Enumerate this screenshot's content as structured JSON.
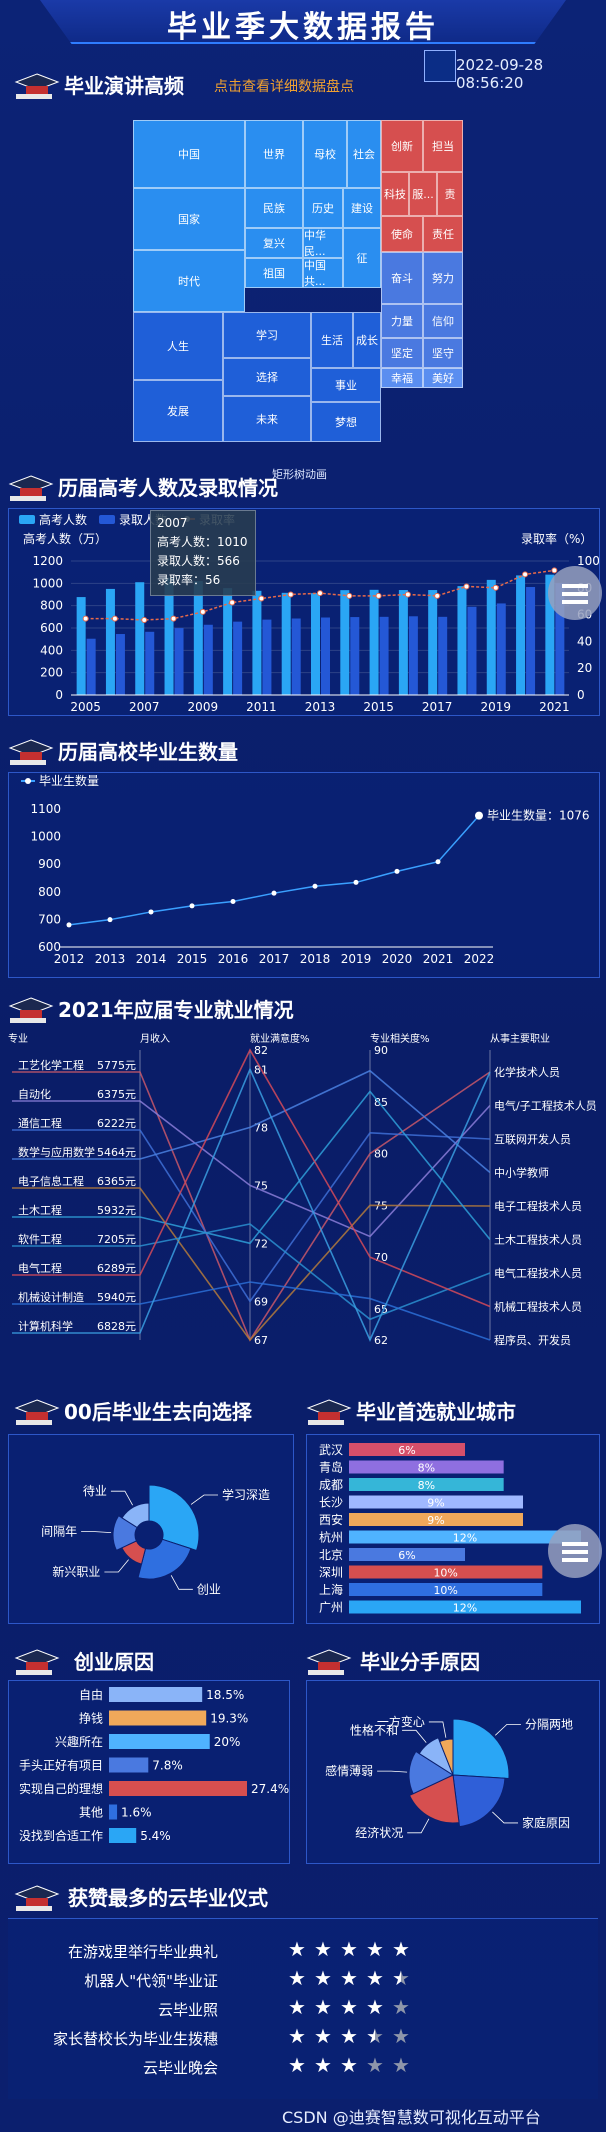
{
  "header": {
    "title": "毕业季大数据报告",
    "timestamp": "2022-09-28 08:56:20"
  },
  "sections": {
    "speech": {
      "title": "毕业演讲高频",
      "link": "点击查看详细数据盘点",
      "tooltip_hint": "矩形树动画"
    },
    "gaokao": {
      "title": "历届高考人数及录取情况"
    },
    "grads": {
      "title": "历届高校毕业生数量"
    },
    "majors": {
      "title": "2021年应届专业就业情况"
    },
    "direction": {
      "title": "00后毕业生去向选择"
    },
    "cities": {
      "title": "毕业首选就业城市"
    },
    "startup": {
      "title": "创业原因"
    },
    "breakup": {
      "title": "毕业分手原因"
    },
    "ceremony": {
      "title": "获赞最多的云毕业仪式"
    }
  },
  "treemap": {
    "cells": [
      {
        "label": "中国",
        "color": "#2a8ef0"
      },
      {
        "label": "国家",
        "color": "#2a8ef0"
      },
      {
        "label": "时代",
        "color": "#2a8ef0"
      },
      {
        "label": "世界",
        "color": "#2a8ef0"
      },
      {
        "label": "母校",
        "color": "#2a8ef0"
      },
      {
        "label": "社会",
        "color": "#2a8ef0"
      },
      {
        "label": "民族",
        "color": "#2a8ef0"
      },
      {
        "label": "历史",
        "color": "#2a8ef0"
      },
      {
        "label": "建设",
        "color": "#2a8ef0"
      },
      {
        "label": "复兴",
        "color": "#2a8ef0"
      },
      {
        "label": "中华民...",
        "color": "#2a8ef0"
      },
      {
        "label": "征",
        "color": "#2a8ef0"
      },
      {
        "label": "祖国",
        "color": "#2a8ef0"
      },
      {
        "label": "中国共...",
        "color": "#2a8ef0"
      },
      {
        "label": "人生",
        "color": "#1f5fd8"
      },
      {
        "label": "发展",
        "color": "#1f5fd8"
      },
      {
        "label": "学习",
        "color": "#1f5fd8"
      },
      {
        "label": "选择",
        "color": "#1f5fd8"
      },
      {
        "label": "未来",
        "color": "#1f5fd8"
      },
      {
        "label": "生活",
        "color": "#1f5fd8"
      },
      {
        "label": "成长",
        "color": "#1f5fd8"
      },
      {
        "label": "事业",
        "color": "#1f5fd8"
      },
      {
        "label": "梦想",
        "color": "#1f5fd8"
      },
      {
        "label": "创新",
        "color": "#d64f4f"
      },
      {
        "label": "担当",
        "color": "#d64f4f"
      },
      {
        "label": "科技",
        "color": "#d64f4f"
      },
      {
        "label": "服...",
        "color": "#d64f4f"
      },
      {
        "label": "责",
        "color": "#d64f4f"
      },
      {
        "label": "使命",
        "color": "#d64f4f"
      },
      {
        "label": "责任",
        "color": "#d64f4f"
      },
      {
        "label": "奋斗",
        "color": "#4a79e0"
      },
      {
        "label": "努力",
        "color": "#4a79e0"
      },
      {
        "label": "力量",
        "color": "#4a79e0"
      },
      {
        "label": "信仰",
        "color": "#4a79e0"
      },
      {
        "label": "坚定",
        "color": "#4a79e0"
      },
      {
        "label": "坚守",
        "color": "#4a79e0"
      },
      {
        "label": "幸福",
        "color": "#5a8ef0"
      },
      {
        "label": "美好",
        "color": "#5a8ef0"
      }
    ]
  },
  "gaokao_chart": {
    "legend": [
      "高考人数",
      "录取人数",
      "录取率"
    ],
    "yleft_label": "高考人数（万）",
    "yright_label": "录取率（%）",
    "tooltip": {
      "year": "2007",
      "rate_name": "录取率",
      "line1": "高考人数：1010",
      "line2": "录取人数：566",
      "line3": "录取率：56"
    }
  },
  "grads_chart": {
    "legend": "毕业生数量",
    "last_label": "毕业生数量：1076"
  },
  "majors_chart": {
    "headers": [
      "专业",
      "月收入",
      "就业满意度%",
      "专业相关度%",
      "从事主要职业"
    ]
  },
  "direction_chart": {
    "labels": [
      "待业",
      "学习深造",
      "间隔年",
      "创业",
      "新兴职业"
    ]
  },
  "ceremony": {
    "items": [
      {
        "name": "在游戏里举行毕业典礼",
        "stars": 5
      },
      {
        "name": "机器人\"代领\"毕业证",
        "stars": 4.5
      },
      {
        "name": "云毕业照",
        "stars": 4
      },
      {
        "name": "家长替校长为毕业生拨穗",
        "stars": 3.5
      },
      {
        "name": "云毕业晚会",
        "stars": 3
      }
    ]
  },
  "footer": {
    "credit": "CSDN @迪赛智慧数可视化互动平台"
  },
  "chart_data": [
    {
      "type": "bar",
      "title": "历届高考人数及录取情况",
      "x": [
        2005,
        2006,
        2007,
        2008,
        2009,
        2010,
        2011,
        2012,
        2013,
        2014,
        2015,
        2016,
        2017,
        2018,
        2019,
        2020,
        2021
      ],
      "xticks": [
        "2005",
        "2007",
        "2009",
        "2011",
        "2013",
        "2015",
        "2017",
        "2019",
        "2021"
      ],
      "ylabel": "高考人数（万）",
      "ylim": [
        0,
        1200
      ],
      "y2label": "录取率（%）",
      "y2lim": [
        0,
        100
      ],
      "series": [
        {
          "name": "高考人数",
          "type": "bar",
          "color": "#2aa6f5",
          "values": [
            877,
            950,
            1010,
            1050,
            1020,
            957,
            933,
            915,
            912,
            939,
            942,
            940,
            940,
            975,
            1031,
            1071,
            1078
          ]
        },
        {
          "name": "录取人数",
          "type": "bar",
          "color": "#2458d6",
          "values": [
            504,
            546,
            566,
            599,
            629,
            657,
            675,
            685,
            694,
            698,
            700,
            705,
            700,
            790,
            820,
            967,
            1001
          ]
        },
        {
          "name": "录取率",
          "type": "line",
          "axis": "right",
          "color": "#e86a4a",
          "values": [
            57,
            57,
            56,
            57,
            62,
            69,
            72,
            75,
            76,
            74,
            74,
            75,
            74,
            81,
            80,
            90,
            93
          ]
        }
      ]
    },
    {
      "type": "line",
      "title": "历届高校毕业生数量",
      "x": [
        2012,
        2013,
        2014,
        2015,
        2016,
        2017,
        2018,
        2019,
        2020,
        2021,
        2022
      ],
      "ylim": [
        600,
        1100
      ],
      "yticks": [
        600,
        700,
        800,
        900,
        1000,
        1100
      ],
      "series": [
        {
          "name": "毕业生数量",
          "color": "#3aa0ff",
          "values": [
            680,
            699,
            727,
            749,
            765,
            795,
            820,
            834,
            874,
            909,
            1076
          ]
        }
      ]
    },
    {
      "type": "parallel",
      "title": "2021年应届专业就业情况",
      "axes": [
        "专业",
        "月收入",
        "就业满意度%",
        "专业相关度%",
        "从事主要职业"
      ],
      "satisfaction_range": [
        67,
        82
      ],
      "relevance_range": [
        62,
        90
      ],
      "sat_ticks": [
        82,
        81,
        78,
        75,
        72,
        69,
        67
      ],
      "rel_ticks": [
        90,
        85,
        80,
        75,
        70,
        65,
        62
      ],
      "occupations": [
        "化学技术人员",
        "电气/子工程技术人员",
        "互联网开发人员",
        "中小学教师",
        "电子工程技术人员",
        "土木工程技术人员",
        "电气工程技术人员",
        "机械工程技术人员",
        "程序员、开发员"
      ],
      "rows": [
        {
          "major": "工艺化学工程",
          "income": "5775元",
          "sat": 67,
          "rel": 80,
          "color": "#c8576a"
        },
        {
          "major": "自动化",
          "income": "6375元",
          "sat": 75,
          "rel": 72,
          "color": "#8a7cd8"
        },
        {
          "major": "通信工程",
          "income": "6222元",
          "sat": 69,
          "rel": 82,
          "color": "#3e6fd6"
        },
        {
          "major": "数学与应用数学",
          "income": "5464元",
          "sat": 78,
          "rel": 88,
          "color": "#4a80e0"
        },
        {
          "major": "电子信息工程",
          "income": "6365元",
          "sat": 67,
          "rel": 75,
          "color": "#b37a3c"
        },
        {
          "major": "土木工程",
          "income": "5932元",
          "sat": 72,
          "rel": 86,
          "color": "#2f9fd8"
        },
        {
          "major": "软件工程",
          "income": "7205元",
          "sat": 73,
          "rel": 64,
          "color": "#2a8fd0"
        },
        {
          "major": "电气工程",
          "income": "6289元",
          "sat": 82,
          "rel": 70,
          "color": "#d44a5a"
        },
        {
          "major": "机械设计制造",
          "income": "5940元",
          "sat": 70,
          "rel": 66,
          "color": "#2c6fd6"
        },
        {
          "major": "计算机科学",
          "income": "6828元",
          "sat": 81,
          "rel": 62,
          "color": "#3a9ee0"
        }
      ]
    },
    {
      "type": "pie",
      "title": "00后毕业生去向选择",
      "labels": [
        "学习深造",
        "创业",
        "新兴职业",
        "间隔年",
        "待业"
      ],
      "values": [
        30,
        24,
        14,
        16,
        16
      ],
      "colors": [
        "#2aa6f5",
        "#2f6fe0",
        "#d64f4f",
        "#4a79e0",
        "#8ab4f8"
      ]
    },
    {
      "type": "bar",
      "title": "毕业首选就业城市",
      "categories": [
        "武汉",
        "青岛",
        "成都",
        "长沙",
        "西安",
        "杭州",
        "北京",
        "深圳",
        "上海",
        "广州"
      ],
      "values": [
        6,
        8,
        8,
        9,
        9,
        12,
        6,
        10,
        10,
        12
      ],
      "labels": [
        "6%",
        "8%",
        "8%",
        "9%",
        "9%",
        "12%",
        "6%",
        "10%",
        "10%",
        "12%"
      ],
      "colors": [
        "#d64f6a",
        "#8f6fe0",
        "#35b6d8",
        "#9fb8ff",
        "#f0a85a",
        "#4fb3ff",
        "#4a79e0",
        "#d64f4f",
        "#2f6fe0",
        "#2aa6f5"
      ],
      "xlim": [
        0,
        12
      ]
    },
    {
      "type": "bar",
      "title": "创业原因",
      "categories": [
        "自由",
        "挣钱",
        "兴趣所在",
        "手头正好有项目",
        "实现自己的理想",
        "其他",
        "没找到合适工作"
      ],
      "values": [
        18.5,
        19.3,
        20,
        7.8,
        27.4,
        1.6,
        5.4
      ],
      "labels": [
        "18.5%",
        "19.3%",
        "20%",
        "7.8%",
        "27.4%",
        "1.6%",
        "5.4%"
      ],
      "colors": [
        "#8ab4f8",
        "#f0a85a",
        "#4fb3ff",
        "#4a79e0",
        "#d64f4f",
        "#2f6fe0",
        "#2aa6f5"
      ],
      "xlim": [
        0,
        27.4
      ]
    },
    {
      "type": "pie",
      "title": "毕业分手原因",
      "labels": [
        "分隔两地",
        "家庭原因",
        "经济状况",
        "感情薄弱",
        "性格不和",
        "一方变心"
      ],
      "values": [
        26,
        22,
        20,
        16,
        10,
        6
      ],
      "colors": [
        "#2aa6f5",
        "#2f5fd8",
        "#d64f4f",
        "#4a79e0",
        "#8ab4f8",
        "#f0a85a"
      ]
    }
  ]
}
